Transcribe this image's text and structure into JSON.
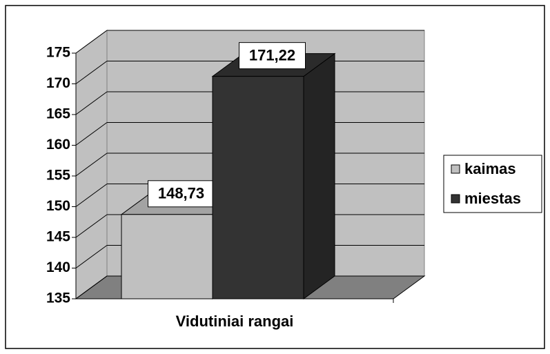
{
  "chart_data": {
    "type": "bar3d",
    "categories": [
      "Vidutiniai rangai"
    ],
    "series": [
      {
        "name": "kaimas",
        "color": "#c0c0c0",
        "values": [
          148.73
        ],
        "value_labels": [
          "148,73"
        ]
      },
      {
        "name": "miestas",
        "color": "#333333",
        "values": [
          171.22
        ],
        "value_labels": [
          "171,22"
        ]
      }
    ],
    "ylim": [
      135,
      175
    ],
    "yticks": [
      135,
      140,
      145,
      150,
      155,
      160,
      165,
      170,
      175
    ],
    "grid": true,
    "legend": "right"
  }
}
